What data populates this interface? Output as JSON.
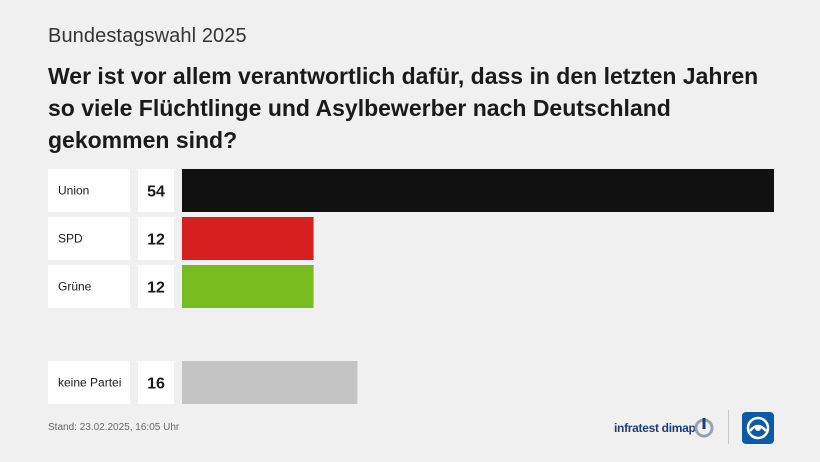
{
  "header": {
    "kicker": "Bundestagswahl 2025",
    "title": "Wer ist vor allem verantwortlich dafür, dass in den letzten Jahren so viele Flüchtlinge und Asylbewerber nach Deutschland gekommen sind?"
  },
  "chart_data": {
    "type": "bar",
    "orientation": "horizontal",
    "categories": [
      "Union",
      "SPD",
      "Grüne",
      "keine Partei"
    ],
    "values": [
      54,
      12,
      12,
      16
    ],
    "colors": [
      "#111111",
      "#d62020",
      "#78bc1f",
      "#c4c4c4"
    ],
    "group_gap_before": [
      false,
      false,
      false,
      true
    ],
    "title": "",
    "xlabel": "",
    "ylabel": "",
    "xlim": [
      0,
      54
    ]
  },
  "footer": {
    "stand": "Stand:  23.02.2025, 16:05 Uhr",
    "brand": "infratest dimap"
  },
  "colors": {
    "background": "#f0f0f0",
    "label_box": "#ffffff",
    "brand": "#1f3c78",
    "logo": "#0d5ba6"
  },
  "icons": {
    "brand_mark": "infratest-dimap-logo-icon",
    "broadcaster": "ard-tagesschau-logo-icon"
  }
}
